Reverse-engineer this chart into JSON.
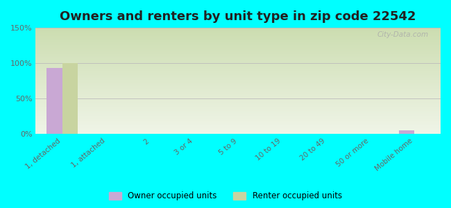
{
  "title": "Owners and renters by unit type in zip code 22542",
  "categories": [
    "1, detached",
    "1, attached",
    "2",
    "3 or 4",
    "5 to 9",
    "10 to 19",
    "20 to 49",
    "50 or more",
    "Mobile home"
  ],
  "owner_values": [
    93,
    0,
    0,
    0,
    0,
    0,
    0,
    0,
    5
  ],
  "renter_values": [
    100,
    0,
    0,
    0,
    0,
    0,
    0,
    0,
    0
  ],
  "owner_color": "#c9a8d4",
  "renter_color": "#c8d4a0",
  "background_color": "#00ffff",
  "grad_top": "#ccddb0",
  "grad_bottom": "#f0f5e8",
  "ylim": [
    0,
    150
  ],
  "yticks": [
    0,
    50,
    100,
    150
  ],
  "ytick_labels": [
    "0%",
    "50%",
    "100%",
    "150%"
  ],
  "title_fontsize": 13,
  "watermark": "City-Data.com",
  "bar_width": 0.35
}
